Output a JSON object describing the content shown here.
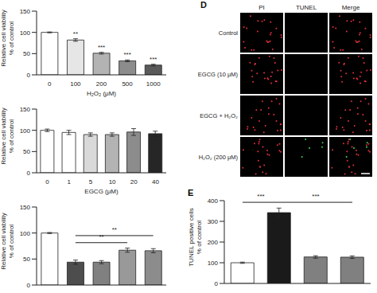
{
  "chart_data": [
    {
      "type": "bar",
      "xlabel": "H₂O₂ (μM)",
      "ylabel": [
        "Relative cell viability",
        "% of control"
      ],
      "categories": [
        "0",
        "100",
        "200",
        "500",
        "1000"
      ],
      "values": [
        100,
        82,
        51,
        33,
        23
      ],
      "error": [
        1,
        3,
        2,
        2,
        2
      ],
      "colors": [
        "#ffffff",
        "#e6e6e6",
        "#b3b3b3",
        "#8c8c8c",
        "#5a5a5a"
      ],
      "ylim": [
        0,
        150
      ],
      "yticks": [
        0,
        50,
        100,
        150
      ],
      "significance": [
        null,
        "**",
        "***",
        "***",
        "***"
      ]
    },
    {
      "type": "bar",
      "xlabel": "EGCG (μM)",
      "ylabel": [
        "Relative cell viability",
        "% of control"
      ],
      "categories": [
        "0",
        "1",
        "5",
        "10",
        "20",
        "40"
      ],
      "values": [
        100,
        95,
        90,
        90,
        96,
        92
      ],
      "error": [
        3,
        5,
        4,
        4,
        8,
        6
      ],
      "colors": [
        "#ffffff",
        "#ffffff",
        "#d9d9d9",
        "#b3b3b3",
        "#8c8c8c",
        "#262626"
      ],
      "ylim": [
        0,
        150
      ],
      "yticks": [
        0,
        50,
        100,
        150
      ]
    },
    {
      "type": "bar",
      "ylabel": [
        "Relative cell viability",
        "% of control"
      ],
      "categories": [
        null,
        null,
        null,
        null,
        null
      ],
      "values": [
        100,
        44,
        44,
        67,
        66
      ],
      "error": [
        1,
        4,
        3,
        4,
        4
      ],
      "colors": [
        "#ffffff",
        "#4d4d4d",
        "#808080",
        "#999999",
        "#8c8c8c"
      ],
      "ylim": [
        0,
        150
      ],
      "yticks": [
        0,
        50,
        100,
        150
      ],
      "brackets": [
        {
          "from": 1,
          "to": 3,
          "label": "**"
        },
        {
          "from": 1,
          "to": 4,
          "label": "**"
        }
      ]
    },
    {
      "type": "bar",
      "panel_label": "E",
      "ylabel": [
        "TUNEL positive cells",
        "% of control"
      ],
      "categories": [
        null,
        null,
        null,
        null
      ],
      "values": [
        100,
        342,
        128,
        127
      ],
      "error": [
        3,
        22,
        6,
        6
      ],
      "colors": [
        "#ffffff",
        "#1a1a1a",
        "#808080",
        "#808080"
      ],
      "ylim": [
        0,
        400
      ],
      "yticks": [
        0,
        100,
        200,
        300,
        400
      ],
      "brackets": [
        {
          "from": 0,
          "to": 1,
          "label": "***"
        },
        {
          "from": 1,
          "to": 3,
          "label": "***"
        }
      ]
    }
  ],
  "image_panel": {
    "panel_label": "D",
    "columns": [
      "PI",
      "TUNEL",
      "Merge"
    ],
    "rows": [
      "Control",
      "EGCG (10 μM)",
      "EGCG + H₂O₂",
      "H₂O₂ (200 μM)"
    ]
  }
}
